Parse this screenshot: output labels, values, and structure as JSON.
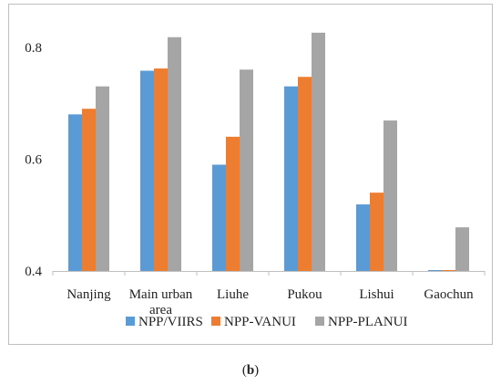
{
  "caption": {
    "open": "(",
    "label": "b",
    "close": ")"
  },
  "chart_data": {
    "type": "bar",
    "categories": [
      "Nanjing",
      "Main urban area",
      "Liuhe",
      "Pukou",
      "Lishui",
      "Gaochun"
    ],
    "category_lines": [
      [
        "Nanjing"
      ],
      [
        "Main urban",
        "area"
      ],
      [
        "Liuhe"
      ],
      [
        "Pukou"
      ],
      [
        "Lishui"
      ],
      [
        "Gaochun"
      ]
    ],
    "series": [
      {
        "name": "NPP/VIIRS",
        "color": "#5b9bd5",
        "values": [
          0.68,
          0.758,
          0.59,
          0.73,
          0.519,
          0.401
        ]
      },
      {
        "name": "NPP-VANUI",
        "color": "#ed7d31",
        "values": [
          0.69,
          0.762,
          0.64,
          0.747,
          0.54,
          0.401
        ]
      },
      {
        "name": "NPP-PLANUI",
        "color": "#a5a5a5",
        "values": [
          0.73,
          0.818,
          0.76,
          0.826,
          0.669,
          0.478
        ]
      }
    ],
    "yticks": [
      "0.4",
      "0.6",
      "0.8"
    ],
    "ylim": [
      0.4,
      0.86
    ],
    "grid": false,
    "legend_position": "bottom"
  }
}
